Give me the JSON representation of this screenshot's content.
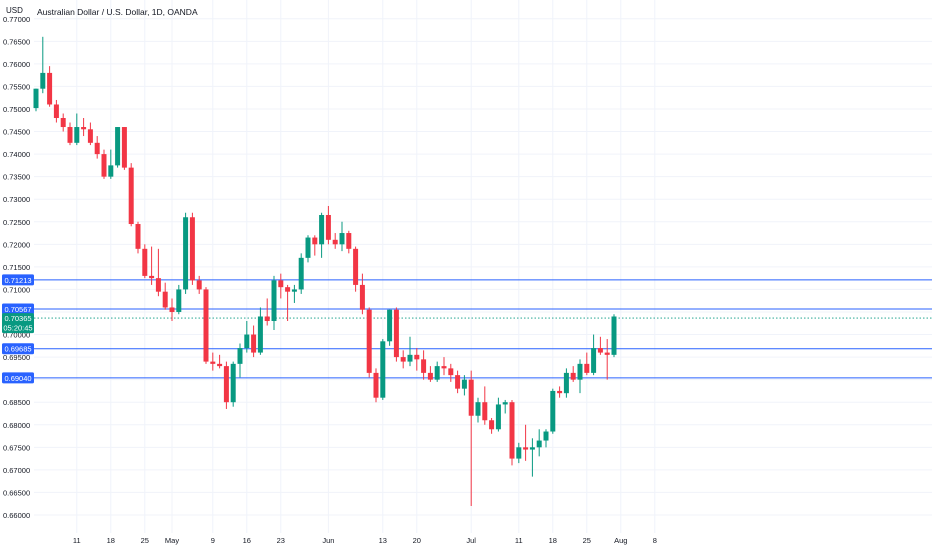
{
  "chart_data": {
    "type": "candlestick",
    "title": "Australian Dollar / U.S. Dollar, 1D, OANDA",
    "currency": "USD",
    "countdown": "05:20:45",
    "ylim": [
      0.658,
      0.7715
    ],
    "yticks": [
      "0.77000",
      "0.76500",
      "0.76000",
      "0.75500",
      "0.75000",
      "0.74500",
      "0.74000",
      "0.73500",
      "0.73000",
      "0.72500",
      "0.72000",
      "0.71500",
      "0.71000",
      "0.70500",
      "0.70000",
      "0.69500",
      "0.69000",
      "0.68500",
      "0.68000",
      "0.67500",
      "0.67000",
      "0.66500",
      "0.66000"
    ],
    "xticks": [
      {
        "label": "11",
        "x": 6
      },
      {
        "label": "18",
        "x": 11
      },
      {
        "label": "25",
        "x": 16
      },
      {
        "label": "May",
        "x": 20
      },
      {
        "label": "9",
        "x": 26
      },
      {
        "label": "16",
        "x": 31
      },
      {
        "label": "23",
        "x": 36
      },
      {
        "label": "Jun",
        "x": 43
      },
      {
        "label": "13",
        "x": 51
      },
      {
        "label": "20",
        "x": 56
      },
      {
        "label": "Jul",
        "x": 64
      },
      {
        "label": "11",
        "x": 71
      },
      {
        "label": "18",
        "x": 76
      },
      {
        "label": "25",
        "x": 81
      },
      {
        "label": "Aug",
        "x": 86
      },
      {
        "label": "8",
        "x": 91
      }
    ],
    "levels": [
      {
        "value": 0.71213,
        "label": "0.71213",
        "color": "#2962ff"
      },
      {
        "value": 0.70567,
        "label": "0.70567",
        "color": "#2962ff"
      },
      {
        "value": 0.69685,
        "label": "0.69685",
        "color": "#2962ff"
      },
      {
        "value": 0.6904,
        "label": "0.69040",
        "color": "#2962ff"
      }
    ],
    "last_price": {
      "value": 0.70365,
      "label": "0.70365",
      "color": "#089981"
    },
    "colors": {
      "up": "#089981",
      "down": "#f23645",
      "grid": "#f0f3fa",
      "axis_text": "#131722"
    },
    "candles": [
      [
        0.7502,
        0.7545,
        0.7495,
        0.7545
      ],
      [
        0.7545,
        0.766,
        0.7535,
        0.758
      ],
      [
        0.758,
        0.7595,
        0.7505,
        0.751
      ],
      [
        0.751,
        0.752,
        0.747,
        0.748
      ],
      [
        0.748,
        0.749,
        0.745,
        0.746
      ],
      [
        0.746,
        0.747,
        0.742,
        0.7425
      ],
      [
        0.7425,
        0.749,
        0.742,
        0.746
      ],
      [
        0.746,
        0.748,
        0.744,
        0.7455
      ],
      [
        0.7455,
        0.747,
        0.742,
        0.7425
      ],
      [
        0.7425,
        0.744,
        0.739,
        0.74
      ],
      [
        0.74,
        0.741,
        0.7345,
        0.735
      ],
      [
        0.735,
        0.741,
        0.7345,
        0.7375
      ],
      [
        0.7375,
        0.746,
        0.737,
        0.746
      ],
      [
        0.746,
        0.746,
        0.7365,
        0.737
      ],
      [
        0.737,
        0.738,
        0.724,
        0.7245
      ],
      [
        0.7245,
        0.725,
        0.718,
        0.719
      ],
      [
        0.719,
        0.72,
        0.7125,
        0.713
      ],
      [
        0.713,
        0.7195,
        0.711,
        0.7125
      ],
      [
        0.7125,
        0.719,
        0.7085,
        0.7095
      ],
      [
        0.7095,
        0.7115,
        0.7055,
        0.706
      ],
      [
        0.706,
        0.708,
        0.703,
        0.705
      ],
      [
        0.705,
        0.711,
        0.7045,
        0.71
      ],
      [
        0.71,
        0.727,
        0.709,
        0.726
      ],
      [
        0.726,
        0.727,
        0.711,
        0.712
      ],
      [
        0.712,
        0.713,
        0.709,
        0.71
      ],
      [
        0.71,
        0.7105,
        0.6935,
        0.694
      ],
      [
        0.694,
        0.696,
        0.692,
        0.6935
      ],
      [
        0.6935,
        0.6955,
        0.6925,
        0.693
      ],
      [
        0.693,
        0.694,
        0.6835,
        0.685
      ],
      [
        0.685,
        0.694,
        0.684,
        0.6935
      ],
      [
        0.6935,
        0.698,
        0.6905,
        0.697
      ],
      [
        0.697,
        0.703,
        0.696,
        0.7
      ],
      [
        0.7,
        0.702,
        0.695,
        0.696
      ],
      [
        0.696,
        0.706,
        0.6955,
        0.704
      ],
      [
        0.704,
        0.708,
        0.702,
        0.703
      ],
      [
        0.703,
        0.713,
        0.701,
        0.712
      ],
      [
        0.712,
        0.7135,
        0.708,
        0.7105
      ],
      [
        0.7105,
        0.711,
        0.703,
        0.7095
      ],
      [
        0.7095,
        0.711,
        0.707,
        0.71
      ],
      [
        0.71,
        0.718,
        0.709,
        0.717
      ],
      [
        0.717,
        0.722,
        0.716,
        0.7215
      ],
      [
        0.7215,
        0.722,
        0.7175,
        0.72
      ],
      [
        0.72,
        0.727,
        0.717,
        0.7265
      ],
      [
        0.7265,
        0.7285,
        0.72,
        0.721
      ],
      [
        0.721,
        0.7225,
        0.719,
        0.72
      ],
      [
        0.72,
        0.725,
        0.7185,
        0.7225
      ],
      [
        0.7225,
        0.723,
        0.718,
        0.719
      ],
      [
        0.719,
        0.7195,
        0.7095,
        0.711
      ],
      [
        0.711,
        0.7135,
        0.7045,
        0.7055
      ],
      [
        0.7055,
        0.706,
        0.6905,
        0.6915
      ],
      [
        0.6915,
        0.6925,
        0.685,
        0.686
      ],
      [
        0.686,
        0.699,
        0.6855,
        0.6985
      ],
      [
        0.6985,
        0.7055,
        0.6975,
        0.7055
      ],
      [
        0.7055,
        0.706,
        0.694,
        0.695
      ],
      [
        0.695,
        0.6965,
        0.6925,
        0.694
      ],
      [
        0.694,
        0.6995,
        0.693,
        0.6955
      ],
      [
        0.6955,
        0.697,
        0.692,
        0.6945
      ],
      [
        0.6945,
        0.6965,
        0.69,
        0.6915
      ],
      [
        0.6915,
        0.693,
        0.6895,
        0.69
      ],
      [
        0.69,
        0.694,
        0.6895,
        0.693
      ],
      [
        0.693,
        0.695,
        0.691,
        0.6925
      ],
      [
        0.6925,
        0.6935,
        0.6895,
        0.691
      ],
      [
        0.691,
        0.692,
        0.687,
        0.688
      ],
      [
        0.688,
        0.691,
        0.6865,
        0.69
      ],
      [
        0.69,
        0.692,
        0.662,
        0.682
      ],
      [
        0.682,
        0.686,
        0.6805,
        0.685
      ],
      [
        0.685,
        0.6885,
        0.68,
        0.681
      ],
      [
        0.681,
        0.6815,
        0.678,
        0.679
      ],
      [
        0.679,
        0.686,
        0.6785,
        0.6845
      ],
      [
        0.6845,
        0.6855,
        0.6825,
        0.685
      ],
      [
        0.685,
        0.6855,
        0.671,
        0.6725
      ],
      [
        0.6725,
        0.676,
        0.6715,
        0.675
      ],
      [
        0.675,
        0.68,
        0.672,
        0.6745
      ],
      [
        0.6745,
        0.677,
        0.6685,
        0.675
      ],
      [
        0.675,
        0.679,
        0.673,
        0.6765
      ],
      [
        0.6765,
        0.679,
        0.675,
        0.6785
      ],
      [
        0.6785,
        0.688,
        0.678,
        0.6875
      ],
      [
        0.6875,
        0.6885,
        0.686,
        0.687
      ],
      [
        0.687,
        0.6925,
        0.686,
        0.6915
      ],
      [
        0.6915,
        0.693,
        0.6895,
        0.69
      ],
      [
        0.69,
        0.6945,
        0.687,
        0.6935
      ],
      [
        0.6935,
        0.696,
        0.691,
        0.6915
      ],
      [
        0.6915,
        0.7,
        0.691,
        0.697
      ],
      [
        0.697,
        0.6995,
        0.6955,
        0.696
      ],
      [
        0.696,
        0.699,
        0.69,
        0.6955
      ],
      [
        0.6955,
        0.7045,
        0.695,
        0.704
      ]
    ]
  }
}
